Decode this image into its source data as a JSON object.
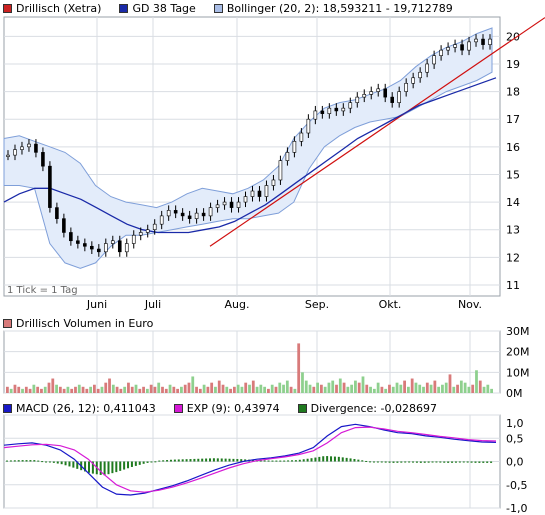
{
  "colors": {
    "price": "#cc2222",
    "gd38": "#1a2aa8",
    "bollinger_fill": "#e3ecfa",
    "bollinger_line": "#7f9fd9",
    "trend": "#d01010",
    "volume": "#d87a7a",
    "volume_up": "#8ed08e",
    "macd": "#1818c8",
    "exp": "#d61ad6",
    "divergence": "#1f7a1f",
    "grid": "#d9dde3",
    "frame": "#9aa0a8"
  },
  "price_panel": {
    "legend": [
      {
        "label": "Drillisch (Xetra)",
        "color": "#cc2222"
      },
      {
        "label": "GD 38 Tage",
        "color": "#1a2aa8"
      },
      {
        "label": "Bollinger (20, 2): 18,593211 - 19,712789",
        "color": "#a9bde6"
      }
    ],
    "tick_note": "1 Tick = 1 Tag"
  },
  "volume_panel": {
    "legend": [
      {
        "label": "Drillisch Volumen in Euro",
        "color": "#d87a7a"
      }
    ]
  },
  "macd_panel": {
    "legend": [
      {
        "label": "MACD (26, 12): 0,411043",
        "color": "#1818c8"
      },
      {
        "label": "EXP (9): 0,43974",
        "color": "#d61ad6"
      },
      {
        "label": "Divergence: -0,028697",
        "color": "#1f7a1f"
      }
    ]
  },
  "chart_data": [
    {
      "type": "line",
      "title": "Drillisch (Xetra)",
      "x_labels": [
        "Juni",
        "Juli",
        "Aug.",
        "Sep.",
        "Okt.",
        "Nov."
      ],
      "y_ticks": [
        11,
        12,
        13,
        14,
        15,
        16,
        17,
        18,
        19,
        20
      ],
      "ylim": [
        10.6,
        20.7
      ],
      "grid": true,
      "series": [
        {
          "name": "Drillisch (Xetra)",
          "values": [
            15.7,
            15.9,
            16.0,
            16.1,
            15.8,
            15.3,
            13.8,
            13.4,
            12.9,
            12.6,
            12.5,
            12.4,
            12.3,
            12.2,
            12.5,
            12.6,
            12.2,
            12.5,
            12.8,
            12.9,
            13.0,
            13.2,
            13.5,
            13.7,
            13.6,
            13.5,
            13.4,
            13.6,
            13.5,
            13.8,
            13.9,
            14.0,
            13.8,
            14.0,
            14.2,
            14.4,
            14.2,
            14.6,
            14.8,
            15.5,
            15.8,
            16.2,
            16.5,
            17.0,
            17.3,
            17.2,
            17.4,
            17.3,
            17.4,
            17.6,
            17.8,
            17.9,
            18.0,
            18.1,
            17.8,
            17.6,
            18.0,
            18.3,
            18.5,
            18.7,
            19.0,
            19.3,
            19.5,
            19.6,
            19.7,
            19.5,
            19.8,
            19.9,
            19.7,
            19.9
          ]
        },
        {
          "name": "GD 38 Tage",
          "values": [
            14.0,
            14.3,
            14.5,
            14.5,
            14.3,
            14.1,
            13.8,
            13.5,
            13.2,
            13.0,
            12.9,
            12.9,
            12.9,
            13.0,
            13.1,
            13.3,
            13.6,
            13.9,
            14.3,
            14.7,
            15.1,
            15.5,
            15.9,
            16.3,
            16.6,
            16.9,
            17.2,
            17.5,
            17.7,
            17.9,
            18.1,
            18.3,
            18.5
          ]
        },
        {
          "name": "Bollinger upper",
          "values": [
            16.3,
            16.4,
            16.2,
            16.0,
            15.8,
            15.4,
            14.6,
            14.2,
            14.0,
            13.9,
            13.8,
            14.0,
            14.3,
            14.5,
            14.4,
            14.3,
            14.5,
            14.8,
            15.3,
            16.3,
            16.9,
            17.4,
            17.6,
            17.7,
            17.9,
            18.1,
            18.4,
            18.9,
            19.3,
            19.6,
            19.8,
            20.1,
            20.3
          ]
        },
        {
          "name": "Bollinger lower",
          "values": [
            14.6,
            14.6,
            14.5,
            12.5,
            11.8,
            11.6,
            11.8,
            12.4,
            12.8,
            12.8,
            12.9,
            13.0,
            13.1,
            13.2,
            13.3,
            13.4,
            13.4,
            13.5,
            13.6,
            14.0,
            15.2,
            16.0,
            16.4,
            16.7,
            16.9,
            17.0,
            17.1,
            17.4,
            17.7,
            18.0,
            18.2,
            18.4,
            18.7
          ]
        },
        {
          "name": "Trendlinie",
          "values": [
            12.4,
            20.1
          ]
        }
      ]
    },
    {
      "type": "bar",
      "title": "Drillisch Volumen in Euro",
      "y_ticks": [
        "0M",
        "10M",
        "20M",
        "30M"
      ],
      "ylim": [
        0,
        30
      ],
      "values": [
        3,
        2,
        4,
        3,
        2,
        3,
        2,
        4,
        3,
        2,
        3,
        5,
        7,
        4,
        3,
        2,
        3,
        2,
        3,
        4,
        3,
        2,
        3,
        4,
        2,
        3,
        5,
        7,
        4,
        3,
        2,
        3,
        5,
        3,
        4,
        2,
        3,
        2,
        4,
        3,
        5,
        3,
        2,
        4,
        3,
        2,
        3,
        4,
        5,
        8,
        3,
        2,
        4,
        3,
        5,
        3,
        6,
        4,
        3,
        2,
        3,
        4,
        3,
        5,
        4,
        6,
        3,
        4,
        3,
        2,
        4,
        3,
        5,
        4,
        6,
        3,
        2,
        24,
        10,
        6,
        4,
        3,
        5,
        4,
        3,
        5,
        6,
        4,
        7,
        5,
        3,
        4,
        6,
        5,
        8,
        4,
        3,
        2,
        5,
        3,
        2,
        4,
        3,
        5,
        4,
        6,
        3,
        7,
        5,
        4,
        3,
        5,
        4,
        6,
        3,
        4,
        5,
        9,
        3,
        4,
        6,
        5,
        3,
        4,
        11,
        6,
        3,
        4,
        2
      ]
    },
    {
      "type": "line",
      "title": "MACD",
      "y_ticks": [
        "-1,0",
        "-0,5",
        "0,0",
        "0,5",
        "1,0"
      ],
      "ylim": [
        -1.0,
        1.0
      ],
      "series": [
        {
          "name": "MACD (26, 12)",
          "values": [
            0.35,
            0.38,
            0.4,
            0.35,
            0.25,
            0.05,
            -0.25,
            -0.55,
            -0.7,
            -0.72,
            -0.68,
            -0.6,
            -0.52,
            -0.42,
            -0.3,
            -0.18,
            -0.08,
            0.0,
            0.05,
            0.08,
            0.12,
            0.18,
            0.3,
            0.55,
            0.75,
            0.8,
            0.75,
            0.68,
            0.62,
            0.6,
            0.55,
            0.52,
            0.48,
            0.45,
            0.42,
            0.41
          ]
        },
        {
          "name": "EXP (9)",
          "values": [
            0.3,
            0.33,
            0.36,
            0.37,
            0.34,
            0.25,
            0.05,
            -0.25,
            -0.5,
            -0.63,
            -0.66,
            -0.62,
            -0.55,
            -0.46,
            -0.36,
            -0.25,
            -0.14,
            -0.05,
            0.02,
            0.06,
            0.1,
            0.15,
            0.23,
            0.4,
            0.62,
            0.73,
            0.74,
            0.7,
            0.65,
            0.62,
            0.58,
            0.54,
            0.51,
            0.47,
            0.45,
            0.44
          ]
        },
        {
          "name": "Divergence",
          "values": [
            0.02,
            0.03,
            0.03,
            -0.01,
            -0.06,
            -0.15,
            -0.25,
            -0.3,
            -0.22,
            -0.12,
            -0.04,
            0.02,
            0.04,
            0.05,
            0.06,
            0.07,
            0.06,
            0.05,
            0.03,
            0.02,
            0.02,
            0.03,
            0.07,
            0.12,
            0.1,
            0.06,
            0.01,
            -0.02,
            -0.03,
            -0.02,
            -0.03,
            -0.02,
            -0.03,
            -0.02,
            -0.03,
            -0.03
          ]
        }
      ]
    }
  ]
}
